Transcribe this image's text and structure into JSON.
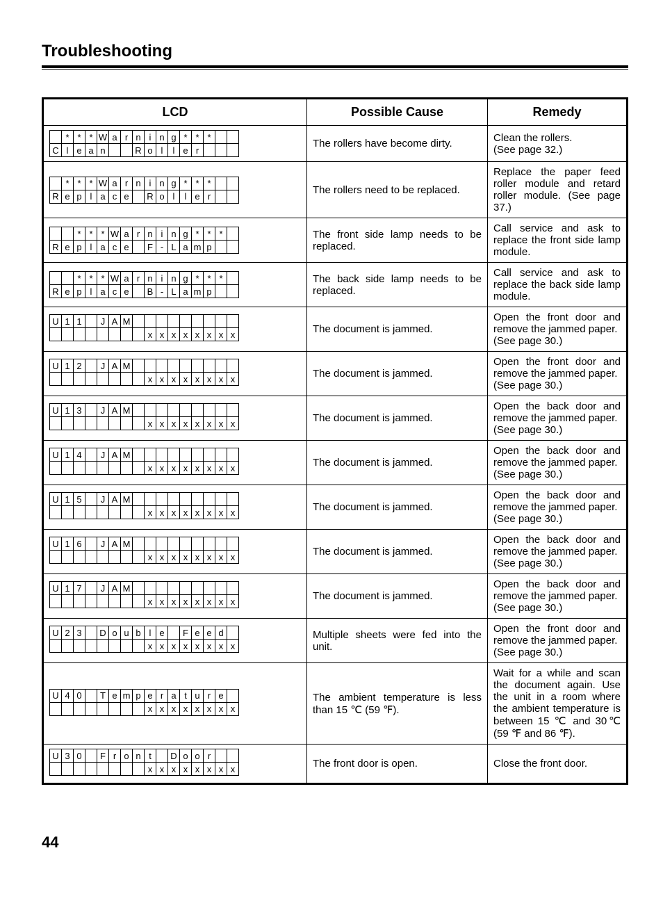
{
  "page_title": "Troubleshooting",
  "page_number": "44",
  "table": {
    "columns": {
      "lcd": "LCD",
      "cause": "Possible Cause",
      "remedy": "Remedy"
    },
    "lcd_cols": 16,
    "rows": [
      {
        "lcd": {
          "line1": " ***Warning*** ",
          "line2": "Clean  Roller   "
        },
        "cause": "The rollers have become dirty.",
        "remedy": "Clean the rollers.\n(See page 32.)"
      },
      {
        "lcd": {
          "line1": " ***Warning*** ",
          "line2": "Replace Roller  "
        },
        "cause": "The rollers need to be replaced.",
        "cause_justify": false,
        "remedy": "Replace the paper feed roller module and retard roller module. (See page 37.)",
        "remedy_justify": true
      },
      {
        "lcd": {
          "line1": "  ***Warning*** ",
          "line2": "Replace F-Lamp  "
        },
        "cause": "The front side lamp needs to be replaced.",
        "cause_justify": true,
        "remedy": "Call service and ask to replace the front side lamp module.",
        "remedy_justify": true
      },
      {
        "lcd": {
          "line1": "  ***Warning*** ",
          "line2": "Replace B-Lamp  "
        },
        "cause": "The back side lamp needs to be replaced.",
        "cause_justify": true,
        "remedy": "Call service and ask to replace the back side lamp module.",
        "remedy_justify": true
      },
      {
        "lcd": {
          "line1": "U11 JAM         ",
          "line2": "        xxxxxxxx"
        },
        "cause": "The document is jammed.",
        "remedy": "Open the front door and remove the jammed paper.\n(See page 30.)",
        "remedy_justify": true
      },
      {
        "lcd": {
          "line1": "U12 JAM         ",
          "line2": "        xxxxxxxx"
        },
        "cause": "The document is jammed.",
        "remedy": "Open the front door and remove the jammed paper.\n(See page 30.)",
        "remedy_justify": true
      },
      {
        "lcd": {
          "line1": "U13 JAM         ",
          "line2": "        xxxxxxxx"
        },
        "cause": "The document is jammed.",
        "remedy": "Open the back door and remove the jammed paper.\n(See page 30.)",
        "remedy_justify": true
      },
      {
        "lcd": {
          "line1": "U14 JAM         ",
          "line2": "        xxxxxxxx"
        },
        "cause": "The document is jammed.",
        "remedy": "Open the back door and remove the jammed paper.\n(See page 30.)",
        "remedy_justify": true
      },
      {
        "lcd": {
          "line1": "U15 JAM         ",
          "line2": "        xxxxxxxx"
        },
        "cause": "The document is jammed.",
        "remedy": "Open the back door and remove the jammed paper.\n(See page 30.)",
        "remedy_justify": true
      },
      {
        "lcd": {
          "line1": "U16 JAM         ",
          "line2": "        xxxxxxxx"
        },
        "cause": "The document is jammed.",
        "remedy": "Open the back door and remove the jammed paper.\n(See page 30.)",
        "remedy_justify": true
      },
      {
        "lcd": {
          "line1": "U17 JAM         ",
          "line2": "        xxxxxxxx"
        },
        "cause": "The document is jammed.",
        "remedy": "Open the back door and remove the jammed paper.\n(See page 30.)",
        "remedy_justify": true
      },
      {
        "lcd": {
          "line1": "U23 Double Feed ",
          "line2": "        xxxxxxxx"
        },
        "cause": "Multiple sheets were fed into the unit.",
        "cause_justify": true,
        "remedy": "Open the front door and remove the jammed paper.\n(See page 30.)",
        "remedy_justify": true
      },
      {
        "lcd": {
          "line1": "U40 Temperature ",
          "line2": "        xxxxxxxx"
        },
        "cause": "The ambient temperature is less than 15 ℃ (59 ℉).",
        "cause_justify": true,
        "remedy": "Wait for a while and scan the document again. Use the unit in a room where the ambient temperature is between 15 ℃ and 30℃ (59 ℉ and 86 ℉).",
        "remedy_justify": true
      },
      {
        "lcd": {
          "line1": "U30 Front Door  ",
          "line2": "        xxxxxxxx"
        },
        "cause": "The front door is open.",
        "remedy": "Close the front door."
      }
    ]
  }
}
